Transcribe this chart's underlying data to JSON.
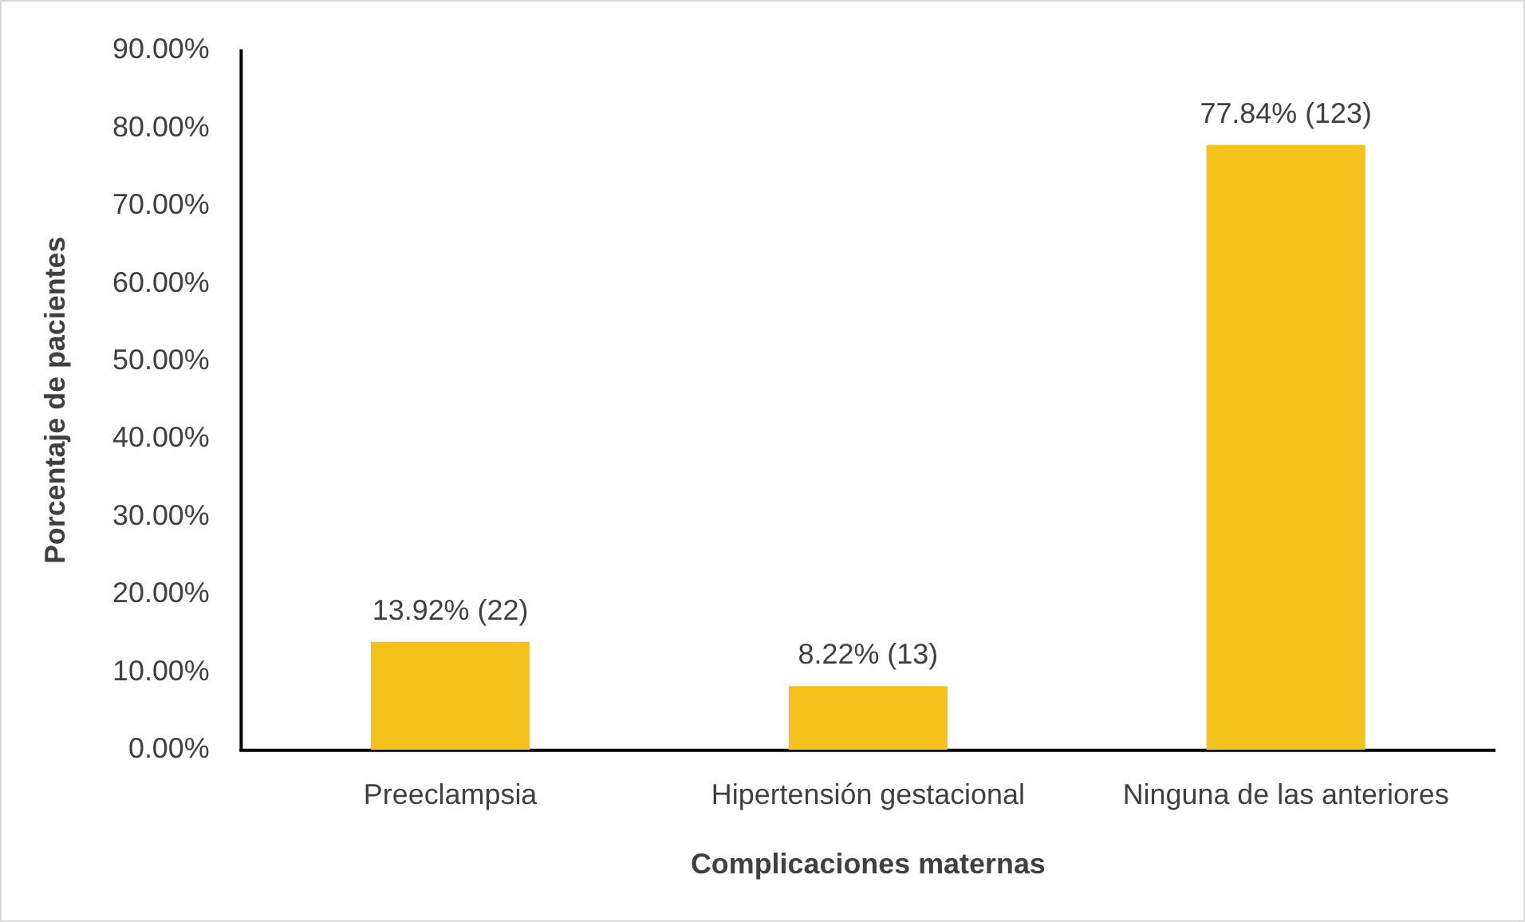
{
  "chart_data": {
    "type": "bar",
    "xlabel": "Complicaciones maternas",
    "ylabel": "Porcentaje de pacientes",
    "categories": [
      "Preeclampsia",
      "Hipertensión gestacional",
      "Ninguna de las anteriores"
    ],
    "values": [
      13.92,
      8.22,
      77.84
    ],
    "value_labels": [
      "13.92% (22)",
      "8.22% (13)",
      "77.84% (123)"
    ],
    "color": "#f5c21b",
    "ylim": [
      0,
      90
    ],
    "yticks": [
      {
        "value": 0,
        "label": "0.00%"
      },
      {
        "value": 10,
        "label": "10.00%"
      },
      {
        "value": 20,
        "label": "20.00%"
      },
      {
        "value": 30,
        "label": "30.00%"
      },
      {
        "value": 40,
        "label": "40.00%"
      },
      {
        "value": 50,
        "label": "50.00%"
      },
      {
        "value": 60,
        "label": "60.00%"
      },
      {
        "value": 70,
        "label": "70.00%"
      },
      {
        "value": 80,
        "label": "80.00%"
      },
      {
        "value": 90,
        "label": "90.00%"
      }
    ],
    "grid": false,
    "legend": false
  }
}
